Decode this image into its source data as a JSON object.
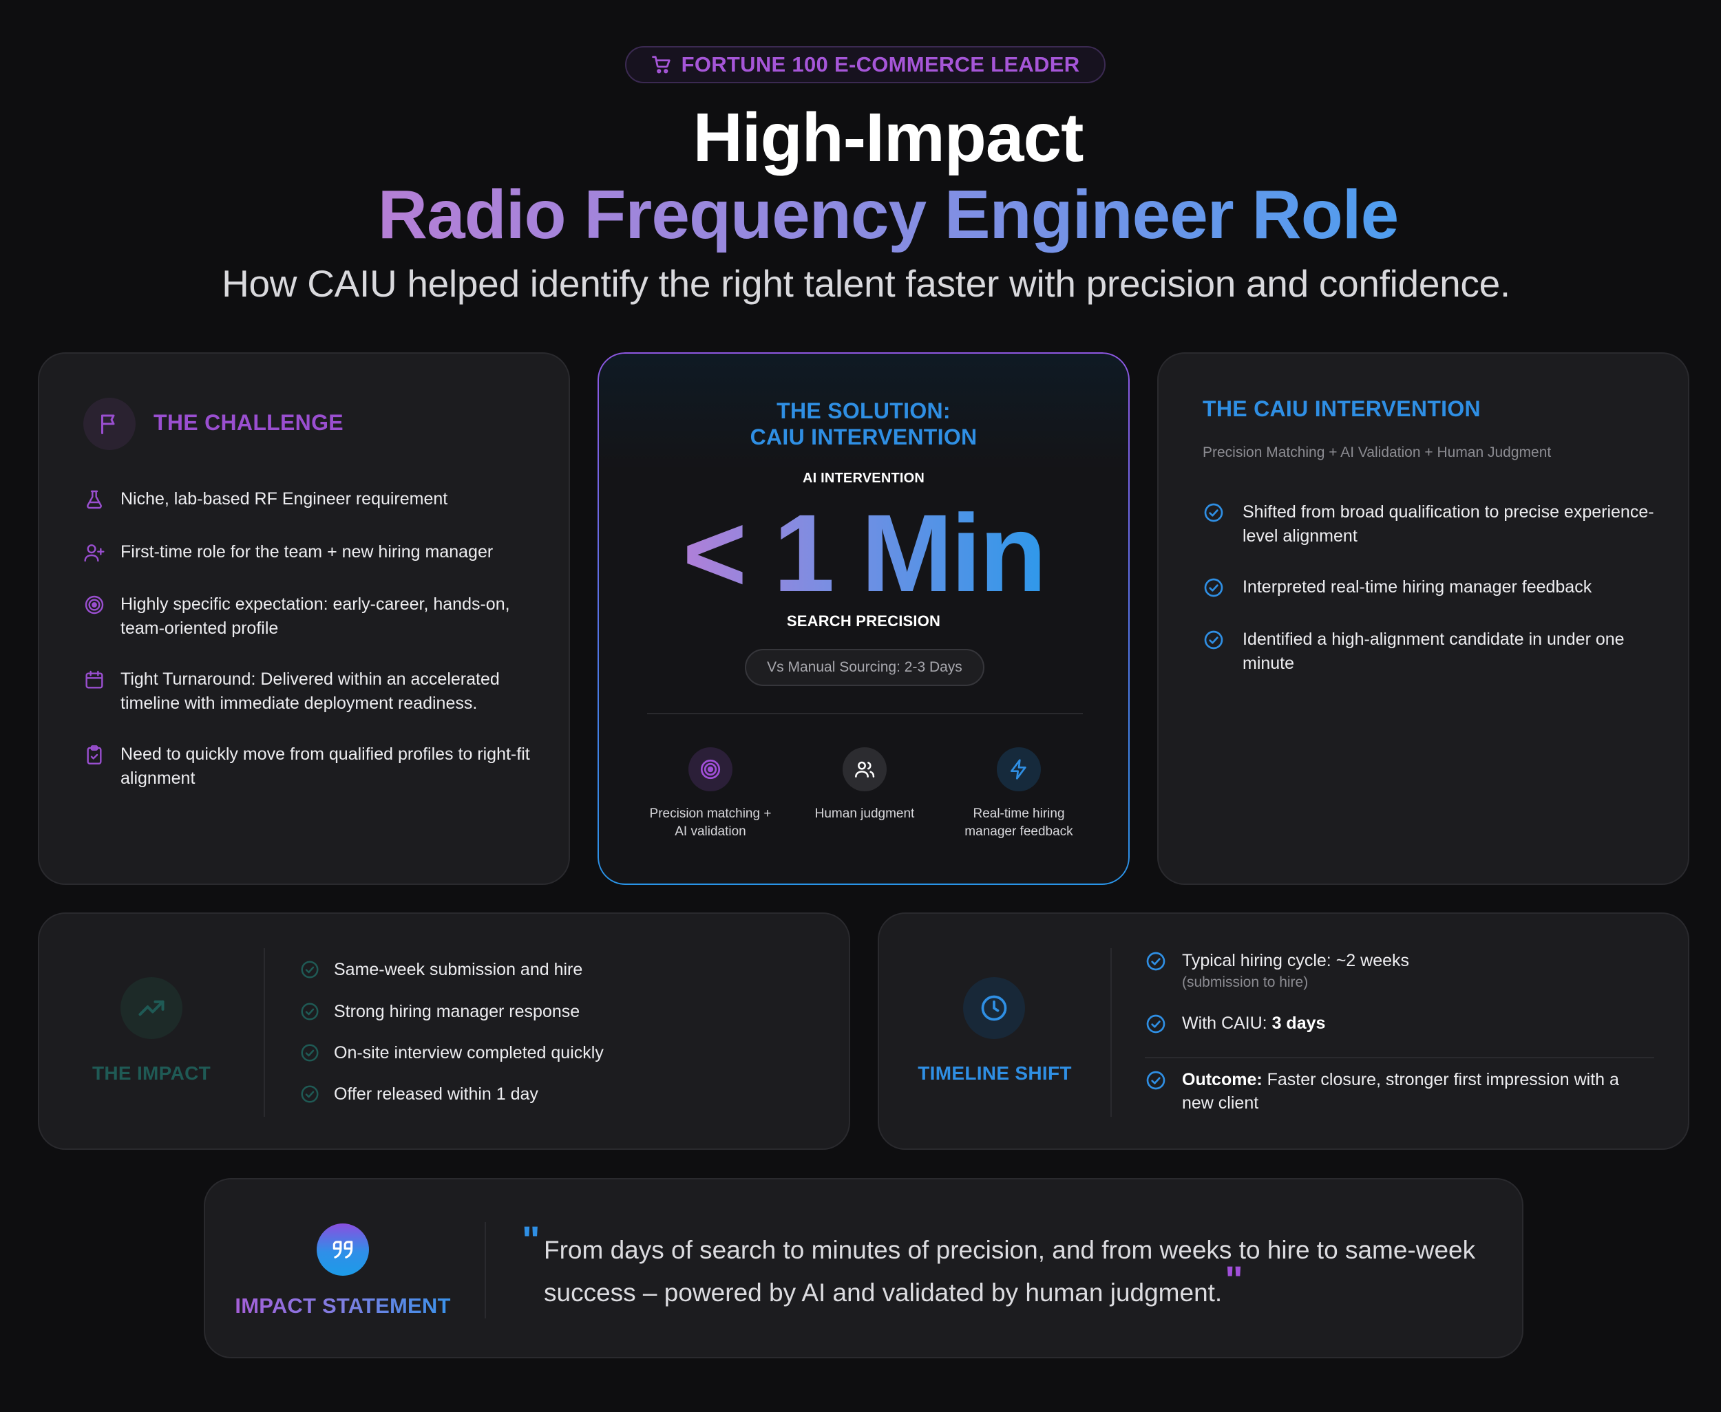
{
  "header": {
    "badge": "FORTUNE 100 E-COMMERCE LEADER",
    "badge_icon": "cart-icon",
    "title_line1": "High-Impact",
    "title_line2": "Radio Frequency Engineer Role",
    "subtitle": "How CAIU helped identify the right talent faster with precision and confidence."
  },
  "challenge": {
    "title": "THE CHALLENGE",
    "icon": "flag-icon",
    "items": [
      {
        "icon": "flask-icon",
        "text": "Niche, lab-based RF Engineer requirement"
      },
      {
        "icon": "user-plus-icon",
        "text": "First-time role for the team + new hiring manager"
      },
      {
        "icon": "target-icon",
        "text": "Highly specific expectation: early-career, hands-on, team-oriented profile"
      },
      {
        "icon": "calendar-icon",
        "text": "Tight Turnaround: Delivered within an accelerated timeline with immediate deployment readiness."
      },
      {
        "icon": "clipboard-check-icon",
        "text": "Need to quickly move from qualified profiles to right-fit alignment"
      }
    ]
  },
  "solution": {
    "title_line1": "THE SOLUTION:",
    "title_line2": "CAIU INTERVENTION",
    "label_top": "AI INTERVENTION",
    "metric": "< 1 Min",
    "label_bottom": "SEARCH PRECISION",
    "comparison": "Vs Manual Sourcing: 2-3 Days",
    "features": [
      {
        "icon": "target-icon",
        "label_line1": "Precision matching +",
        "label_line2": "AI validation"
      },
      {
        "icon": "users-icon",
        "label_line1": "Human judgment",
        "label_line2": ""
      },
      {
        "icon": "lightning-icon",
        "label_line1": "Real-time hiring",
        "label_line2": "manager feedback"
      }
    ]
  },
  "intervention": {
    "title": "THE CAIU INTERVENTION",
    "subtitle": "Precision Matching + AI Validation + Human Judgment",
    "items": [
      "Shifted from broad qualification to precise experience-level alignment",
      "Interpreted real-time hiring manager feedback",
      "Identified a high-alignment candidate in under one minute"
    ]
  },
  "impact": {
    "title": "THE IMPACT",
    "icon": "trending-up-icon",
    "items": [
      "Same-week submission and hire",
      "Strong hiring manager response",
      "On-site interview completed quickly",
      "Offer released within 1 day"
    ]
  },
  "timeline": {
    "title": "TIMELINE SHIFT",
    "icon": "clock-icon",
    "item1": "Typical hiring cycle: ~2 weeks",
    "item1_note": "(submission to hire)",
    "item2_prefix": "With CAIU: ",
    "item2_value": "3 days",
    "item3_prefix": "Outcome:",
    "item3_text": " Faster closure, stronger first impression with a new client"
  },
  "statement": {
    "title": "IMPACT STATEMENT",
    "icon": "quote-icon",
    "quote": "From days of search to minutes of precision, and from weeks to hire to same-week success – powered by AI and validated by human judgment."
  },
  "colors": {
    "background": "#0e0e10",
    "card": "#1c1c1f",
    "purple": "#9a4fd0",
    "blue": "#2f8fe4",
    "teal": "#1f5a55"
  }
}
